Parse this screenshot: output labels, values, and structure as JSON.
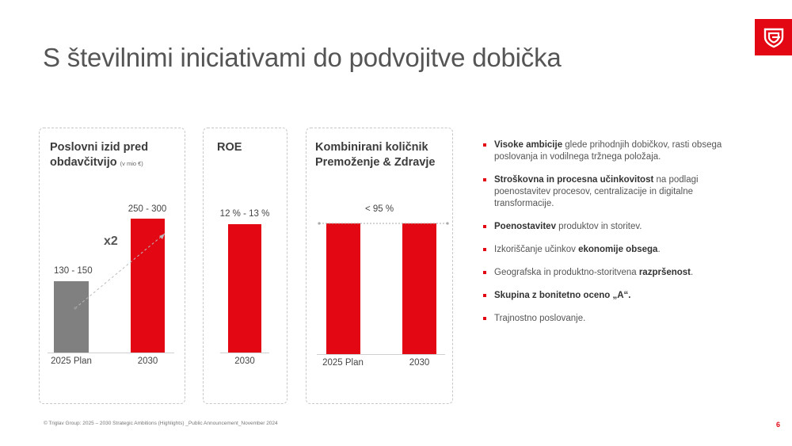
{
  "title": "S številnimi iniciativami do podvojitve dobička",
  "brand": {
    "accent": "#e30613",
    "gray": "#808080"
  },
  "logo": {
    "icon": "triglav-logo-icon"
  },
  "cards": [
    {
      "title_line1": "Poslovni izid pred",
      "title_line2": "obdavčitvijo",
      "unit": "(v mio €)",
      "chart_data": {
        "type": "bar",
        "categories": [
          "2025 Plan",
          "2030"
        ],
        "value_labels": [
          "130 - 150",
          "250 - 300"
        ],
        "values": [
          140,
          275
        ],
        "colors": [
          "#808080",
          "#e30613"
        ],
        "annotation": "x2"
      }
    },
    {
      "title_line1": "ROE",
      "chart_data": {
        "type": "bar",
        "categories": [
          "2030"
        ],
        "value_labels": [
          "12 % - 13 %"
        ],
        "values": [
          12.5
        ],
        "colors": [
          "#e30613"
        ]
      }
    },
    {
      "title_line1": "Kombinirani količnik",
      "title_line2": "Premoženje & Zdravje",
      "chart_data": {
        "type": "bar",
        "categories": [
          "2025 Plan",
          "2030"
        ],
        "value_labels": [
          "< 95 %"
        ],
        "values": [
          95,
          95
        ],
        "colors": [
          "#e30613",
          "#e30613"
        ]
      }
    }
  ],
  "bullets": [
    {
      "bold": "Visoke ambicije",
      "text": " glede prihodnjih dobičkov, rasti obsega poslovanja in vodilnega tržnega položaja."
    },
    {
      "bold": "Stroškovna in procesna učinkovitost",
      "text": " na podlagi poenostavitev procesov, centralizacije in digitalne transformacije."
    },
    {
      "bold": "Poenostavitev",
      "text": " produktov in storitev."
    },
    {
      "pre": "Izkoriščanje učinkov ",
      "bold": "ekonomije obsega",
      "text": "."
    },
    {
      "pre": "Geografska in produktno-storitvena ",
      "bold": "razpršenost",
      "text": "."
    },
    {
      "bold": "Skupina z bonitetno oceno „A“.",
      "text": ""
    },
    {
      "pre": "Trajnostno poslovanje",
      "text": "."
    }
  ],
  "footer": "© Triglav Group: 2025 – 2030 Strategic Ambitions (Highlights) _Public Announcement_November 2024",
  "page_number": "6"
}
